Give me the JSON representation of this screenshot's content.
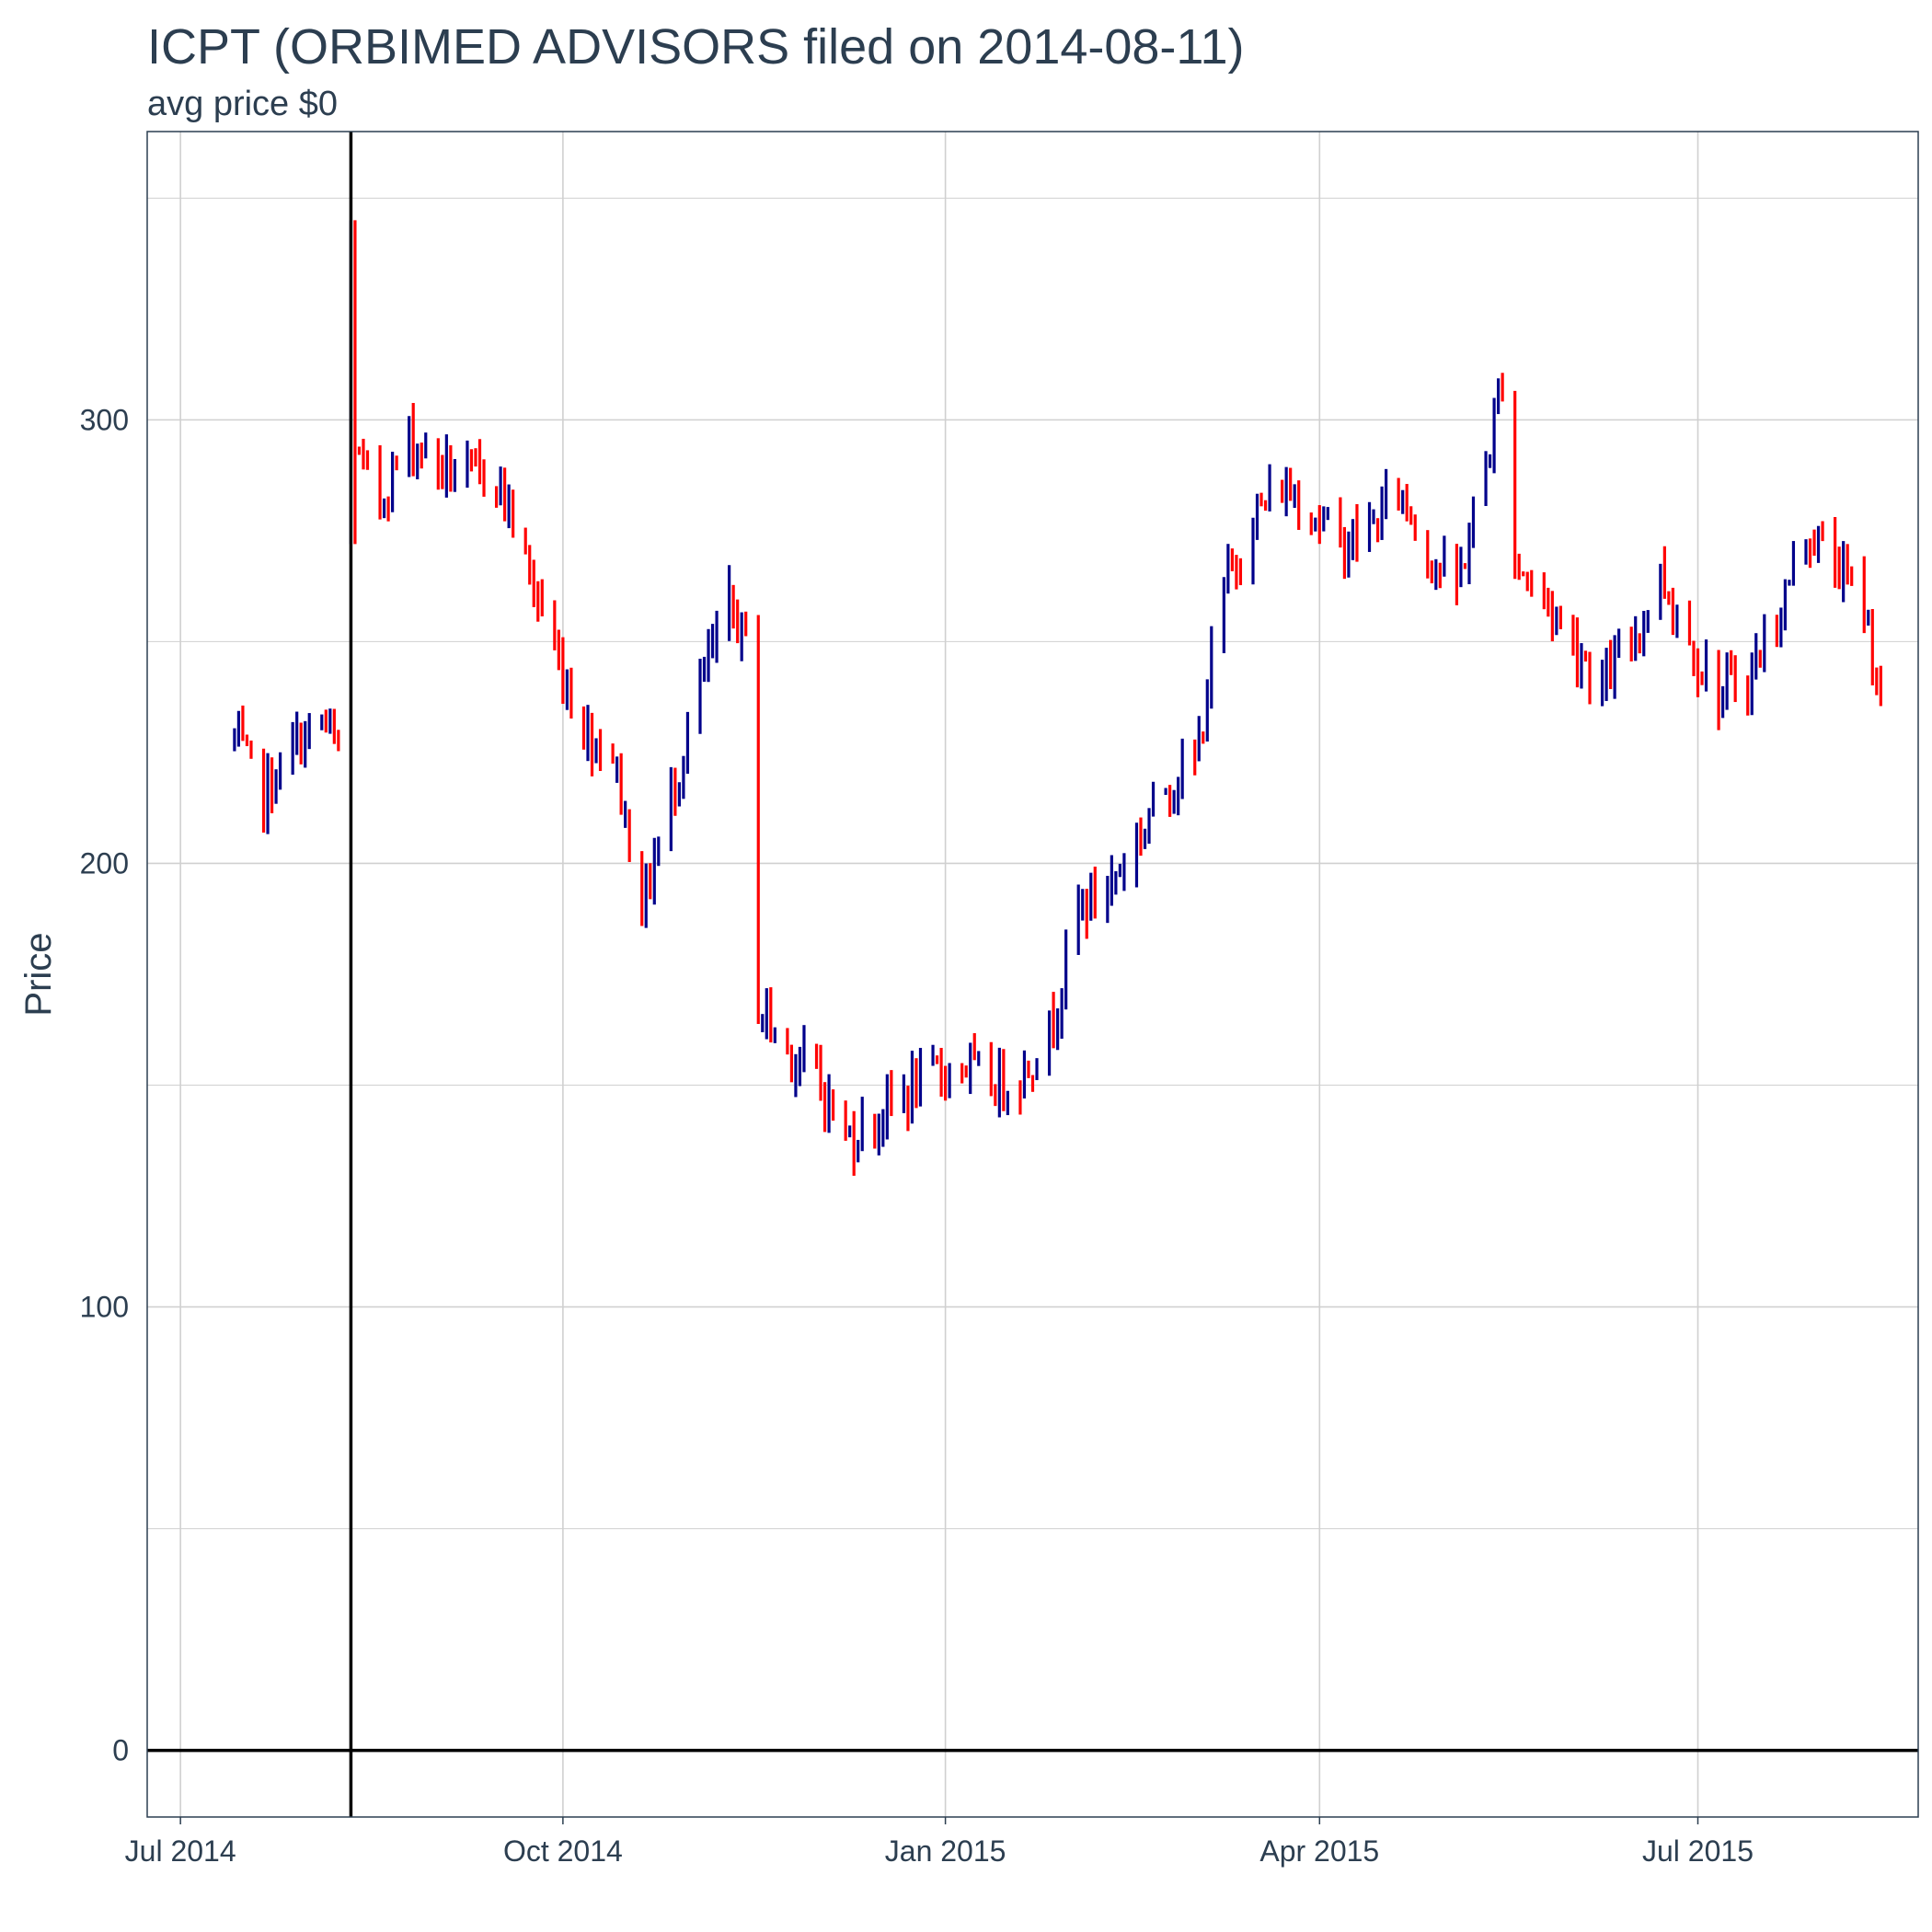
{
  "chart_data": {
    "type": "ohlc",
    "title": "ICPT (ORBIMED ADVISORS filed on 2014-08-11)",
    "subtitle": "avg price $0",
    "xlabel": "",
    "ylabel": "Price",
    "xlim": [
      "2014-06-23",
      "2015-08-23"
    ],
    "ylim": [
      -15,
      365
    ],
    "x_ticks": [
      {
        "date": "2014-07-01",
        "label": "Jul 2014"
      },
      {
        "date": "2014-10-01",
        "label": "Oct 2014"
      },
      {
        "date": "2015-01-01",
        "label": "Jan 2015"
      },
      {
        "date": "2015-04-01",
        "label": "Apr 2015"
      },
      {
        "date": "2015-07-01",
        "label": "Jul 2015"
      }
    ],
    "y_ticks": [
      {
        "value": 0,
        "label": "0"
      },
      {
        "value": 100,
        "label": "100"
      },
      {
        "value": 200,
        "label": "200"
      },
      {
        "value": 300,
        "label": "300"
      }
    ],
    "grid": true,
    "reference_lines": {
      "vertical_date": "2014-08-11",
      "horizontal_value": 0
    },
    "colors": {
      "up": "#00008B",
      "down": "#FF0000",
      "reference": "#000000",
      "grid": "#d0d0d0",
      "text": "#2c3e50"
    },
    "anchors": [
      [
        "2014-07-14",
        228
      ],
      [
        "2014-07-21",
        215
      ],
      [
        "2014-07-28",
        226
      ],
      [
        "2014-08-04",
        232
      ],
      [
        "2014-08-08",
        225
      ],
      [
        "2014-08-11",
        300
      ],
      [
        "2014-08-13",
        290
      ],
      [
        "2014-08-18",
        282
      ],
      [
        "2014-08-25",
        296
      ],
      [
        "2014-09-01",
        290
      ],
      [
        "2014-09-08",
        287
      ],
      [
        "2014-09-15",
        288
      ],
      [
        "2014-09-22",
        268
      ],
      [
        "2014-09-29",
        248
      ],
      [
        "2014-10-06",
        230
      ],
      [
        "2014-10-13",
        225
      ],
      [
        "2014-10-20",
        190
      ],
      [
        "2014-10-27",
        215
      ],
      [
        "2014-11-03",
        240
      ],
      [
        "2014-11-10",
        258
      ],
      [
        "2014-11-14",
        250
      ],
      [
        "2014-11-17",
        168
      ],
      [
        "2014-11-24",
        158
      ],
      [
        "2014-12-01",
        152
      ],
      [
        "2014-12-08",
        138
      ],
      [
        "2014-12-15",
        142
      ],
      [
        "2014-12-22",
        148
      ],
      [
        "2014-12-29",
        152
      ],
      [
        "2015-01-05",
        155
      ],
      [
        "2015-01-12",
        150
      ],
      [
        "2015-01-19",
        152
      ],
      [
        "2015-01-26",
        162
      ],
      [
        "2015-02-02",
        190
      ],
      [
        "2015-02-09",
        195
      ],
      [
        "2015-02-16",
        205
      ],
      [
        "2015-02-23",
        218
      ],
      [
        "2015-03-02",
        222
      ],
      [
        "2015-03-09",
        262
      ],
      [
        "2015-03-16",
        278
      ],
      [
        "2015-03-23",
        285
      ],
      [
        "2015-03-30",
        280
      ],
      [
        "2015-04-06",
        272
      ],
      [
        "2015-04-13",
        275
      ],
      [
        "2015-04-20",
        285
      ],
      [
        "2015-04-27",
        270
      ],
      [
        "2015-05-04",
        262
      ],
      [
        "2015-05-11",
        290
      ],
      [
        "2015-05-15",
        310
      ],
      [
        "2015-05-18",
        268
      ],
      [
        "2015-05-25",
        260
      ],
      [
        "2015-06-01",
        250
      ],
      [
        "2015-06-08",
        240
      ],
      [
        "2015-06-15",
        250
      ],
      [
        "2015-06-22",
        265
      ],
      [
        "2015-06-29",
        250
      ],
      [
        "2015-07-06",
        238
      ],
      [
        "2015-07-13",
        242
      ],
      [
        "2015-07-20",
        255
      ],
      [
        "2015-07-27",
        275
      ],
      [
        "2015-08-03",
        268
      ],
      [
        "2015-08-10",
        258
      ],
      [
        "2015-08-14",
        238
      ]
    ],
    "gaps": [
      [
        "2014-11-14",
        "2014-11-17"
      ]
    ]
  }
}
